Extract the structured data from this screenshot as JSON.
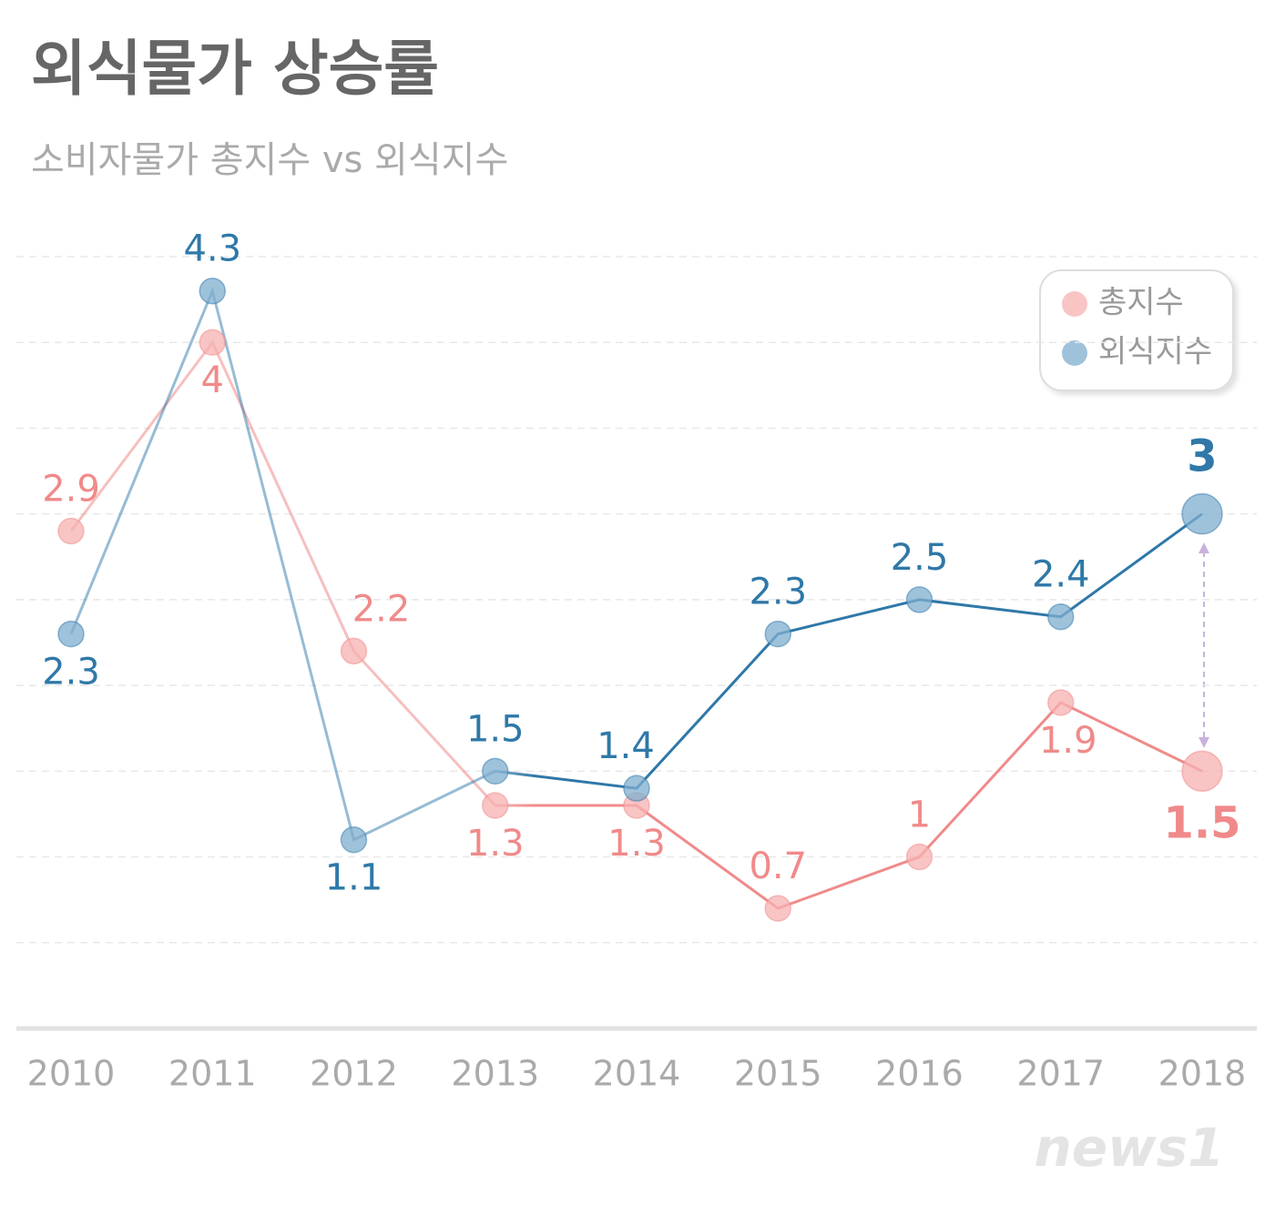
{
  "chart_data": {
    "type": "line",
    "title": "외식물가 상승률",
    "subtitle": "소비자물가 총지수 vs 외식지수",
    "categories": [
      "2010",
      "2011",
      "2012",
      "2013",
      "2014",
      "2015",
      "2016",
      "2017",
      "2018"
    ],
    "series": [
      {
        "name": "총지수",
        "color": "#f08a8a",
        "marker_color": "#f7b0b0",
        "values": [
          2.9,
          4,
          2.2,
          1.3,
          1.3,
          0.7,
          1,
          1.9,
          1.5
        ]
      },
      {
        "name": "외식지수",
        "color": "#2f78a8",
        "marker_color": "#7fadcf",
        "values": [
          2.3,
          4.3,
          1.1,
          1.5,
          1.4,
          2.3,
          2.5,
          2.4,
          3
        ]
      }
    ],
    "ylim": [
      0,
      4.5
    ],
    "yticks": [
      0,
      0.5,
      1,
      1.5,
      2,
      2.5,
      3,
      3.5,
      4,
      4.5
    ],
    "grid": true,
    "legend": "top-right",
    "watermark": "news1"
  }
}
